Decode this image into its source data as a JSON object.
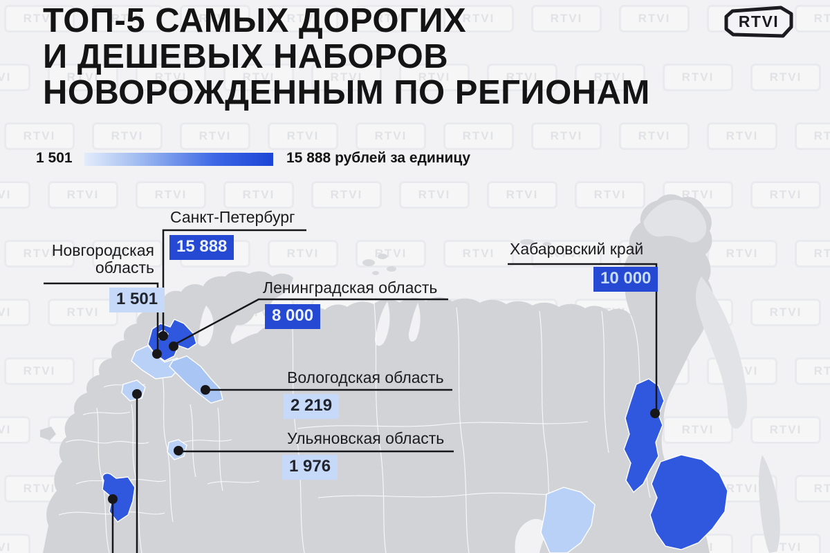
{
  "title": {
    "lines": [
      "ТОП-5 САМЫХ ДОРОГИХ",
      "И ДЕШЕВЫХ НАБОРОВ",
      "НОВОРОЖДЕННЫМ ПО РЕГИОНАМ"
    ]
  },
  "branding": {
    "logo_text": "RTVI",
    "watermark_text": "RTVI"
  },
  "legend": {
    "min_label": "1 501",
    "max_label": "15 888 рублей за единицу",
    "min_color": "#e3ecfb",
    "max_color": "#1c45d6"
  },
  "chart_data": {
    "type": "choropleth_map",
    "geography": "Регионы России",
    "title": "ТОП-5 самых дорогих и дешевых наборов новорожденным по регионам",
    "value_unit": "рублей за единицу",
    "scale": {
      "min": 1501,
      "max": 15888
    },
    "regions": [
      {
        "name": "Санкт-Петербург",
        "value": 15888,
        "value_display": "15 888",
        "tier": "high"
      },
      {
        "name": "Новгородская область",
        "value": 1501,
        "value_display": "1 501",
        "tier": "low"
      },
      {
        "name": "Ленинградская область",
        "value": 8000,
        "value_display": "8 000",
        "tier": "high"
      },
      {
        "name": "Хабаровский край",
        "value": 10000,
        "value_display": "10 000",
        "tier": "high"
      },
      {
        "name": "Вологодская область",
        "value": 2219,
        "value_display": "2 219",
        "tier": "low"
      },
      {
        "name": "Ульяновская область",
        "value": 1976,
        "value_display": "1 976",
        "tier": "low"
      }
    ]
  },
  "colors": {
    "background": "#f2f2f4",
    "map_gray": "#d2d3d7",
    "map_gray_light": "#e2e3e7",
    "region_dark_blue": "#3058de",
    "region_light_blue": "#b9d0f7",
    "region_medium_blue": "#a8c5f3",
    "badge_dark_blue": "#2549d2",
    "badge_light_blue": "#c6d9f8",
    "callout_line": "#17171a"
  }
}
